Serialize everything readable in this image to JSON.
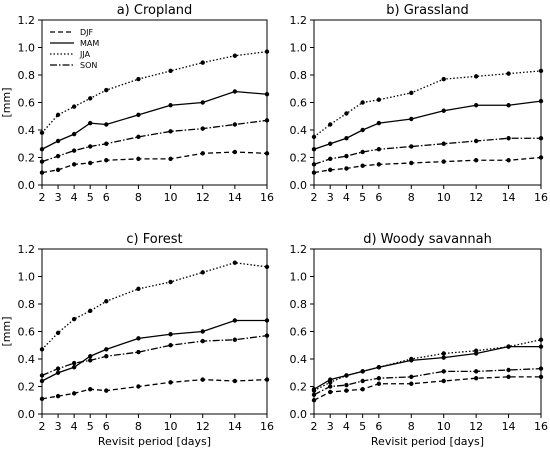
{
  "chart_data": [
    {
      "type": "line",
      "title": "a) Cropland",
      "xlabel": "",
      "ylabel": "[mm]",
      "xlim": [
        2,
        16
      ],
      "ylim": [
        0,
        1.2
      ],
      "xticks": [
        2,
        3,
        4,
        5,
        6,
        8,
        10,
        12,
        14,
        16
      ],
      "yticks": [
        "0.0",
        "0.2",
        "0.4",
        "0.6",
        "0.8",
        "1.0",
        "1.2"
      ],
      "legend": "top-left",
      "x": [
        2,
        3,
        4,
        5,
        6,
        8,
        10,
        12,
        14,
        16
      ],
      "series": [
        {
          "name": "DJF",
          "values": [
            0.09,
            0.11,
            0.15,
            0.16,
            0.18,
            0.19,
            0.19,
            0.23,
            0.24,
            0.23
          ]
        },
        {
          "name": "MAM",
          "values": [
            0.26,
            0.32,
            0.37,
            0.45,
            0.44,
            0.51,
            0.58,
            0.6,
            0.68,
            0.66
          ]
        },
        {
          "name": "JJA",
          "values": [
            0.38,
            0.51,
            0.57,
            0.63,
            0.69,
            0.77,
            0.83,
            0.89,
            0.94,
            0.97
          ]
        },
        {
          "name": "SON",
          "values": [
            0.17,
            0.21,
            0.25,
            0.28,
            0.3,
            0.35,
            0.39,
            0.41,
            0.44,
            0.47
          ]
        }
      ]
    },
    {
      "type": "line",
      "title": "b) Grassland",
      "xlabel": "",
      "ylabel": "",
      "xlim": [
        2,
        16
      ],
      "ylim": [
        0,
        1.2
      ],
      "xticks": [
        2,
        3,
        4,
        5,
        6,
        8,
        10,
        12,
        14,
        16
      ],
      "yticks": [
        "0.0",
        "0.2",
        "0.4",
        "0.6",
        "0.8",
        "1.0",
        "1.2"
      ],
      "x": [
        2,
        3,
        4,
        5,
        6,
        8,
        10,
        12,
        14,
        16
      ],
      "series": [
        {
          "name": "DJF",
          "values": [
            0.09,
            0.11,
            0.12,
            0.14,
            0.15,
            0.16,
            0.17,
            0.18,
            0.18,
            0.2
          ]
        },
        {
          "name": "MAM",
          "values": [
            0.26,
            0.3,
            0.34,
            0.4,
            0.45,
            0.48,
            0.54,
            0.58,
            0.58,
            0.61
          ]
        },
        {
          "name": "JJA",
          "values": [
            0.35,
            0.44,
            0.52,
            0.6,
            0.62,
            0.67,
            0.77,
            0.79,
            0.81,
            0.83
          ]
        },
        {
          "name": "SON",
          "values": [
            0.15,
            0.19,
            0.21,
            0.24,
            0.26,
            0.28,
            0.3,
            0.32,
            0.34,
            0.34
          ]
        }
      ]
    },
    {
      "type": "line",
      "title": "c) Forest",
      "xlabel": "Revisit period [days]",
      "ylabel": "[mm]",
      "xlim": [
        2,
        16
      ],
      "ylim": [
        0,
        1.2
      ],
      "xticks": [
        2,
        3,
        4,
        5,
        6,
        8,
        10,
        12,
        14,
        16
      ],
      "yticks": [
        "0.0",
        "0.2",
        "0.4",
        "0.6",
        "0.8",
        "1.0",
        "1.2"
      ],
      "x": [
        2,
        3,
        4,
        5,
        6,
        8,
        10,
        12,
        14,
        16
      ],
      "series": [
        {
          "name": "DJF",
          "values": [
            0.11,
            0.13,
            0.15,
            0.18,
            0.17,
            0.2,
            0.23,
            0.25,
            0.24,
            0.25
          ]
        },
        {
          "name": "MAM",
          "values": [
            0.24,
            0.3,
            0.34,
            0.42,
            0.47,
            0.55,
            0.58,
            0.6,
            0.68,
            0.68
          ]
        },
        {
          "name": "JJA",
          "values": [
            0.47,
            0.59,
            0.69,
            0.75,
            0.82,
            0.91,
            0.96,
            1.03,
            1.1,
            1.07
          ]
        },
        {
          "name": "SON",
          "values": [
            0.28,
            0.33,
            0.37,
            0.39,
            0.42,
            0.45,
            0.5,
            0.53,
            0.54,
            0.57
          ]
        }
      ]
    },
    {
      "type": "line",
      "title": "d) Woody savannah",
      "xlabel": "Revisit period [days]",
      "ylabel": "",
      "xlim": [
        2,
        16
      ],
      "ylim": [
        0,
        1.2
      ],
      "xticks": [
        2,
        3,
        4,
        5,
        6,
        8,
        10,
        12,
        14,
        16
      ],
      "yticks": [
        "0.0",
        "0.2",
        "0.4",
        "0.6",
        "0.8",
        "1.0",
        "1.2"
      ],
      "x": [
        2,
        3,
        4,
        5,
        6,
        8,
        10,
        12,
        14,
        16
      ],
      "series": [
        {
          "name": "DJF",
          "values": [
            0.1,
            0.16,
            0.17,
            0.18,
            0.22,
            0.22,
            0.24,
            0.26,
            0.27,
            0.27
          ]
        },
        {
          "name": "MAM",
          "values": [
            0.18,
            0.25,
            0.28,
            0.31,
            0.34,
            0.39,
            0.41,
            0.44,
            0.49,
            0.49
          ]
        },
        {
          "name": "JJA",
          "values": [
            0.17,
            0.23,
            0.28,
            0.31,
            0.34,
            0.4,
            0.44,
            0.46,
            0.49,
            0.54
          ]
        },
        {
          "name": "SON",
          "values": [
            0.14,
            0.2,
            0.21,
            0.24,
            0.26,
            0.27,
            0.31,
            0.31,
            0.32,
            0.33
          ]
        }
      ]
    }
  ]
}
